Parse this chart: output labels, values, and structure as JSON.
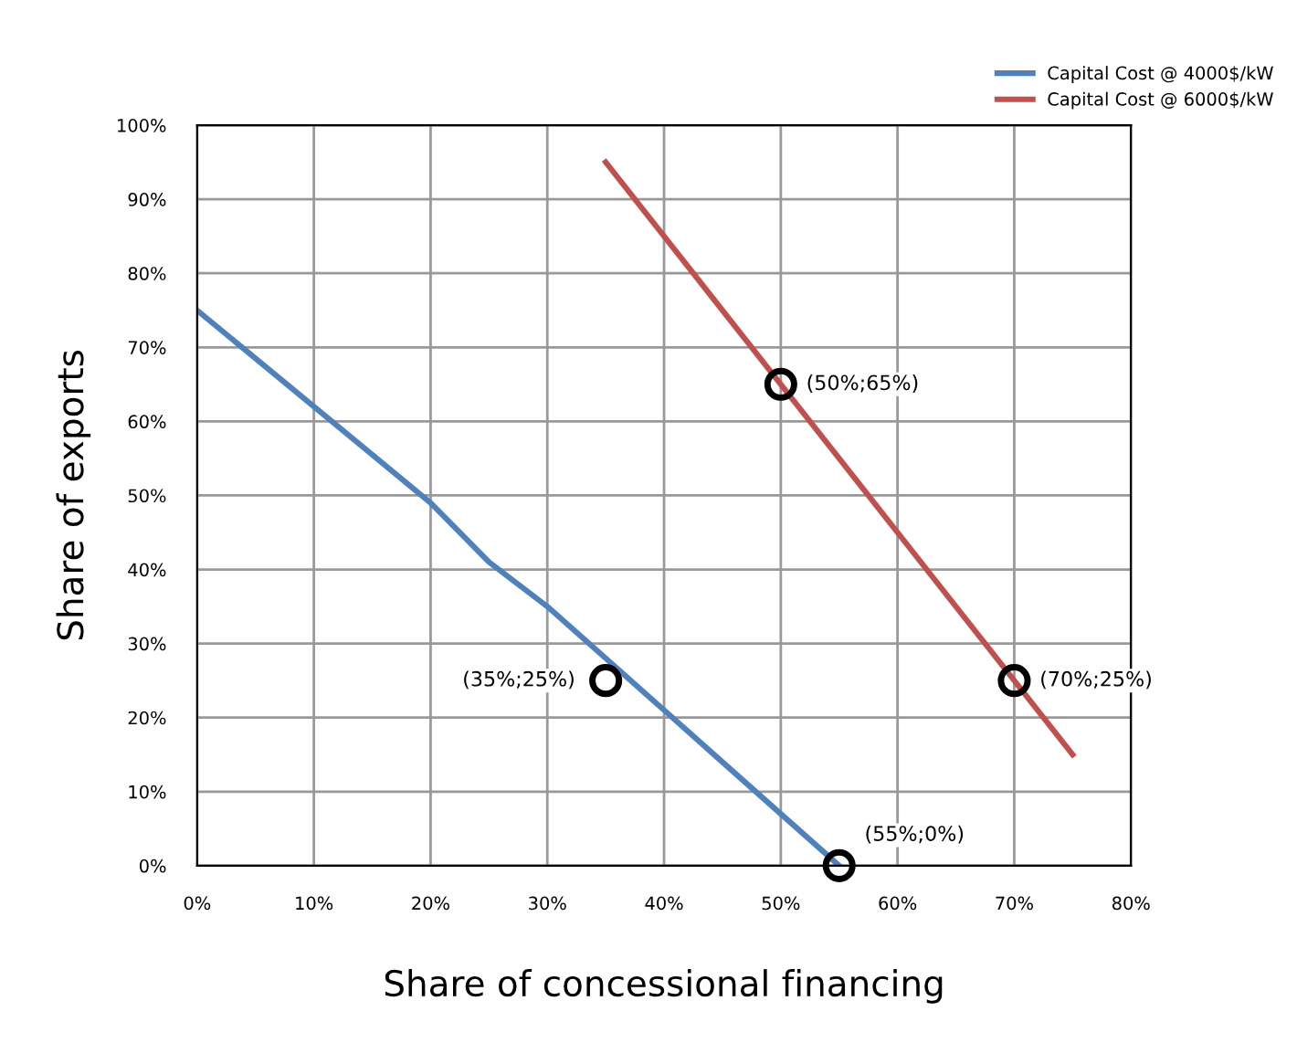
{
  "chart_data": {
    "type": "line",
    "xlabel": "Share of concessional financing",
    "ylabel": "Share of exports",
    "xlim": [
      0,
      80
    ],
    "ylim": [
      0,
      100
    ],
    "xticks": [
      {
        "value": 0,
        "label": "0%"
      },
      {
        "value": 10,
        "label": "10%"
      },
      {
        "value": 20,
        "label": "20%"
      },
      {
        "value": 30,
        "label": "30%"
      },
      {
        "value": 40,
        "label": "40%"
      },
      {
        "value": 50,
        "label": "50%"
      },
      {
        "value": 60,
        "label": "60%"
      },
      {
        "value": 70,
        "label": "70%"
      },
      {
        "value": 80,
        "label": "80%"
      }
    ],
    "yticks": [
      {
        "value": 0,
        "label": "0%"
      },
      {
        "value": 10,
        "label": "10%"
      },
      {
        "value": 20,
        "label": "20%"
      },
      {
        "value": 30,
        "label": "30%"
      },
      {
        "value": 40,
        "label": "40%"
      },
      {
        "value": 50,
        "label": "50%"
      },
      {
        "value": 60,
        "label": "60%"
      },
      {
        "value": 70,
        "label": "70%"
      },
      {
        "value": 80,
        "label": "80%"
      },
      {
        "value": 90,
        "label": "90%"
      },
      {
        "value": 100,
        "label": "100%"
      }
    ],
    "grid": true,
    "legend": "top right",
    "marker": "none",
    "line_style": "solid",
    "series": [
      {
        "name": "Capital Cost @ 4000$/kW",
        "color": "#4f81bd",
        "x": [
          0,
          10,
          20,
          25,
          30,
          35,
          40,
          45,
          50,
          55
        ],
        "values": [
          75,
          62,
          49,
          41,
          35,
          28,
          21,
          14,
          7,
          0
        ]
      },
      {
        "name": "Capital Cost @ 6000$/kW",
        "color": "#c0504d",
        "x": [
          35,
          50,
          70,
          75
        ],
        "values": [
          95,
          65,
          25,
          15
        ]
      },
      {
        "type": "scatter",
        "marker": "circle",
        "color": "#000000",
        "x": [
          35,
          55,
          50,
          70
        ],
        "values": [
          25,
          0,
          65,
          25
        ]
      }
    ],
    "annotations": [
      {
        "text": "(35%;25%)",
        "x": 35,
        "y": 25
      },
      {
        "text": "(55%;0%)",
        "x": 55,
        "y": 0
      },
      {
        "text": "(50%;65%)",
        "x": 50,
        "y": 65
      },
      {
        "text": "(70%;25%)",
        "x": 70,
        "y": 25
      }
    ]
  }
}
